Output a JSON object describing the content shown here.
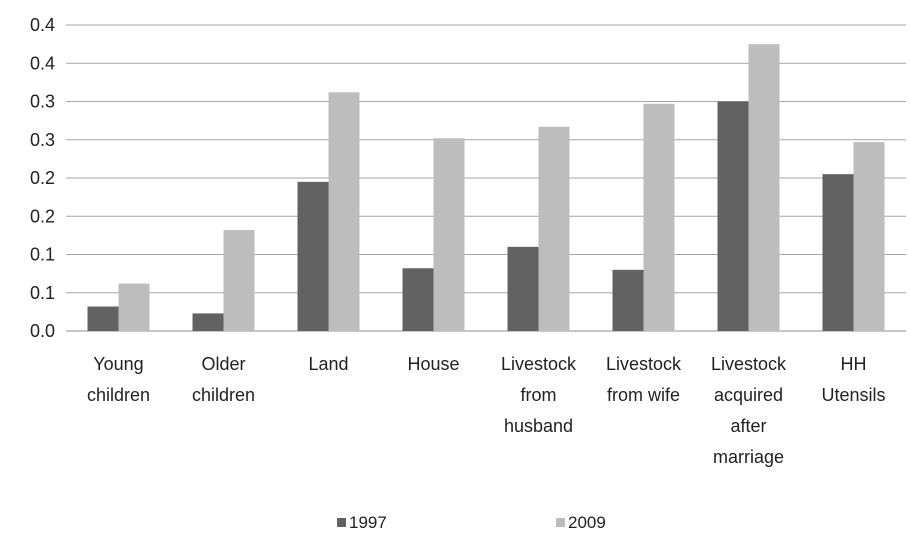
{
  "chart_data": {
    "type": "bar",
    "categories": [
      [
        "Young",
        "children"
      ],
      [
        "Older",
        "children"
      ],
      [
        "Land"
      ],
      [
        "House"
      ],
      [
        "Livestock",
        "from",
        "husband"
      ],
      [
        "Livestock",
        "from wife"
      ],
      [
        "Livestock",
        "acquired",
        "after",
        "marriage"
      ],
      [
        "HH",
        "Utensils"
      ]
    ],
    "series": [
      {
        "name": "1997",
        "color": "#626262",
        "values": [
          0.032,
          0.023,
          0.195,
          0.082,
          0.11,
          0.08,
          0.3,
          0.205
        ]
      },
      {
        "name": "2009",
        "color": "#bdbdbd",
        "values": [
          0.062,
          0.132,
          0.312,
          0.252,
          0.267,
          0.297,
          0.375,
          0.247
        ]
      }
    ],
    "y_ticks": [
      "0.0",
      "0.1",
      "0.1",
      "0.2",
      "0.2",
      "0.3",
      "0.3",
      "0.4",
      "0.4"
    ],
    "ylim": [
      0,
      0.4
    ],
    "grid": true,
    "legend_position": "bottom"
  }
}
